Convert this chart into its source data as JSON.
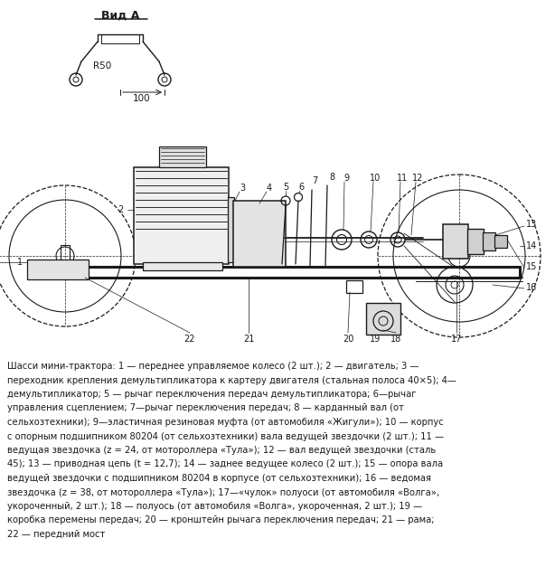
{
  "bg_color": "#ffffff",
  "line_color": "#1a1a1a",
  "vid_a_label": "Вид А",
  "r50_label": "R50",
  "dim100_label": "100",
  "caption_line1": "Шасси мини-трактора: 1 — переднее управляемое колесо (2 шт.); 2 — двигатель; 3 —",
  "caption_line2": "переходник крепления демультипликатора к картеру двигателя (стальная полоса 40×5); 4—",
  "caption_line3": "демультипликатор; 5 — рычаг переключения передач демультипликатора; 6—рычаг",
  "caption_line4": "управления сцеплением; 7—рычаг переключения передач; 8 — карданный вал (от",
  "caption_line5": "сельхозтехники); 9—эластичная резиновая муфта (от автомобиля «Жигули»); 10 — корпус",
  "caption_line6": "с опорным подшипником 80204 (от сельхозтехники) вала ведущей звездочки (2 шт.); 11 —",
  "caption_line7": "ведущая звездочка (z = 24, от мотороллера «Тула»); 12 — вал ведущей звездочки (сталь",
  "caption_line8": "45); 13 — приводная цепь (t = 12,7); 14 — заднее ведущее колесо (2 шт.); 15 — опора вала",
  "caption_line9": "ведущей звездочки с подшипником 80204 в корпусе (от сельхозтехники); 16 — ведомая",
  "caption_line10": "звездочка (z = 38, от мотороллера «Тула»); 17—«чулок» полуоси (от автомобиля «Волга»,",
  "caption_line11": "укороченный, 2 шт.); 18 — полуось (от автомобиля «Волга», укороченная, 2 шт.); 19 —",
  "caption_line12": "коробка перемены передач; 20 — кронштейн рычага переключения передач; 21 — рама;",
  "caption_line13": "22 — передний мост"
}
